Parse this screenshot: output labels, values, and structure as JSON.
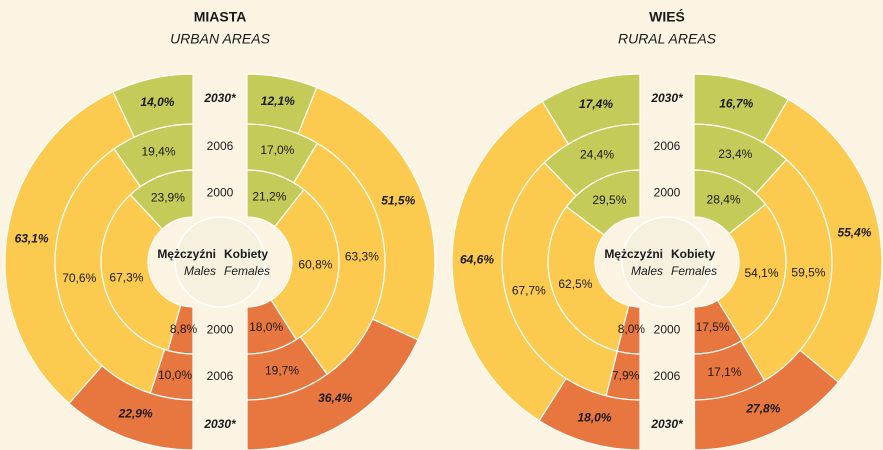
{
  "chart_data": [
    {
      "type": "split-donut",
      "title": "MIASTA",
      "subtitle": "URBAN AREAS",
      "colors": [
        "#c4cb58",
        "#fdca50",
        "#e8763f"
      ],
      "rings": [
        "2000",
        "2006",
        "2030*"
      ],
      "groups": [
        {
          "name": "Mężczyźni",
          "subname": "Males",
          "series": [
            {
              "values": [
                23.9,
                67.3,
                8.8
              ],
              "value_labels": [
                "23,9%",
                "67,3%",
                "8,8%"
              ]
            },
            {
              "values": [
                19.4,
                70.6,
                10.0
              ],
              "value_labels": [
                "19,4%",
                "70,6%",
                "10,0%"
              ]
            },
            {
              "values": [
                14.0,
                63.1,
                22.9
              ],
              "value_labels": [
                "14,0%",
                "63,1%",
                "22,9%"
              ]
            }
          ]
        },
        {
          "name": "Kobiety",
          "subname": "Females",
          "series": [
            {
              "values": [
                21.2,
                60.8,
                18.0
              ],
              "value_labels": [
                "21,2%",
                "60,8%",
                "18,0%"
              ]
            },
            {
              "values": [
                17.0,
                63.3,
                19.7
              ],
              "value_labels": [
                "17,0%",
                "63,3%",
                "19,7%"
              ]
            },
            {
              "values": [
                12.1,
                51.5,
                36.4
              ],
              "value_labels": [
                "12,1%",
                "51,5%",
                "36,4%"
              ]
            }
          ]
        }
      ]
    },
    {
      "type": "split-donut",
      "title": "WIEŚ",
      "subtitle": "RURAL AREAS",
      "colors": [
        "#c4cb58",
        "#fdca50",
        "#e8763f"
      ],
      "rings": [
        "2000",
        "2006",
        "2030*"
      ],
      "groups": [
        {
          "name": "Mężczyźni",
          "subname": "Males",
          "series": [
            {
              "values": [
                29.5,
                62.5,
                8.0
              ],
              "value_labels": [
                "29,5%",
                "62,5%",
                "8,0%"
              ]
            },
            {
              "values": [
                24.4,
                67.7,
                7.9
              ],
              "value_labels": [
                "24,4%",
                "67,7%",
                "7,9%"
              ]
            },
            {
              "values": [
                17.4,
                64.6,
                18.0
              ],
              "value_labels": [
                "17,4%",
                "64,6%",
                "18,0%"
              ]
            }
          ]
        },
        {
          "name": "Kobiety",
          "subname": "Females",
          "series": [
            {
              "values": [
                28.4,
                54.1,
                17.5
              ],
              "value_labels": [
                "28,4%",
                "54,1%",
                "17,5%"
              ]
            },
            {
              "values": [
                23.4,
                59.5,
                17.1
              ],
              "value_labels": [
                "23,4%",
                "59,5%",
                "17,1%"
              ]
            },
            {
              "values": [
                16.7,
                55.4,
                27.8
              ],
              "value_labels": [
                "16,7%",
                "55,4%",
                "27,8%"
              ]
            }
          ]
        }
      ]
    }
  ]
}
